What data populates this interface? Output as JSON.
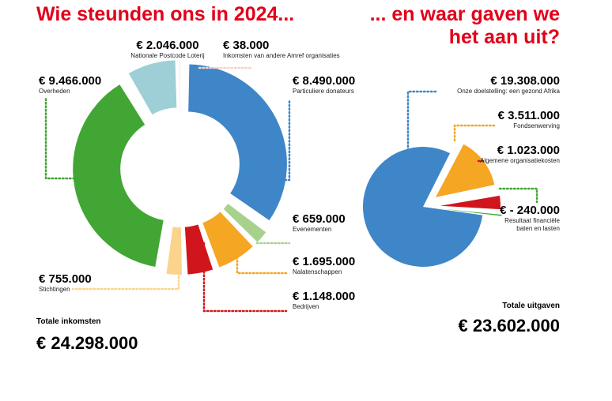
{
  "header": {
    "left_title": "Wie steunden ons in 2024...",
    "right_title_line1": "... en waar gaven we",
    "right_title_line2": "het aan uit?"
  },
  "income": {
    "total_label": "Totale inkomsten",
    "total_value": "€ 24.298.000",
    "slices": [
      {
        "name": "Particuliere donateurs",
        "amount": "€ 8.490.000",
        "value": 8490000,
        "color": "#3f86c8"
      },
      {
        "name": "Evenementen",
        "amount": "€ 659.000",
        "value": 659000,
        "color": "#a9d18e"
      },
      {
        "name": "Nalatenschappen",
        "amount": "€ 1.695.000",
        "value": 1695000,
        "color": "#f5a623"
      },
      {
        "name": "Bedrijven",
        "amount": "€ 1.148.000",
        "value": 1148000,
        "color": "#d0161c"
      },
      {
        "name": "Stichtingen",
        "amount": "€ 755.000",
        "value": 755000,
        "color": "#fbd38d"
      },
      {
        "name": "Overheden",
        "amount": "€ 9.466.000",
        "value": 9466000,
        "color": "#41a633"
      },
      {
        "name": "Nationale Postcode Loterij",
        "amount": "€ 2.046.000",
        "value": 2046000,
        "color": "#9ecfd6"
      },
      {
        "name": "Inkomsten van andere Amref organisaties",
        "amount": "€ 38.000",
        "value": 38000,
        "color": "#fbd0c8"
      }
    ]
  },
  "expenses": {
    "total_label": "Totale uitgaven",
    "total_value": "€ 23.602.000",
    "slices": [
      {
        "name": "Onze doelstelling: een gezond Afrika",
        "amount": "€ 19.308.000",
        "value": 19308000,
        "color": "#3f86c8"
      },
      {
        "name": "Fondsenwerving",
        "amount": "€ 3.511.000",
        "value": 3511000,
        "color": "#f5a623"
      },
      {
        "name": "Algemene organisatiekosten",
        "amount": "€ 1.023.000",
        "value": 1023000,
        "color": "#d0161c"
      },
      {
        "name_line1": "Resultaat financiële",
        "name_line2": "baten en lasten",
        "amount": "€ - 240.000",
        "value": 240000,
        "color": "#41a633"
      }
    ]
  },
  "chart_data": [
    {
      "type": "pie",
      "categories": [
        "Particuliere donateurs",
        "Evenementen",
        "Nalatenschappen",
        "Bedrijven",
        "Stichtingen",
        "Overheden",
        "Nationale Postcode Loterij",
        "Inkomsten van andere Amref organisaties"
      ],
      "values": [
        8490000,
        659000,
        1695000,
        1148000,
        755000,
        9466000,
        2046000,
        38000
      ],
      "title": "Wie steunden ons in 2024..."
    },
    {
      "type": "pie",
      "categories": [
        "Onze doelstelling: een gezond Afrika",
        "Fondsenwerving",
        "Algemene organisatiekosten",
        "Resultaat financiële baten en lasten"
      ],
      "values": [
        19308000,
        3511000,
        1023000,
        -240000
      ],
      "title": "... en waar gaven we het aan uit?"
    }
  ]
}
